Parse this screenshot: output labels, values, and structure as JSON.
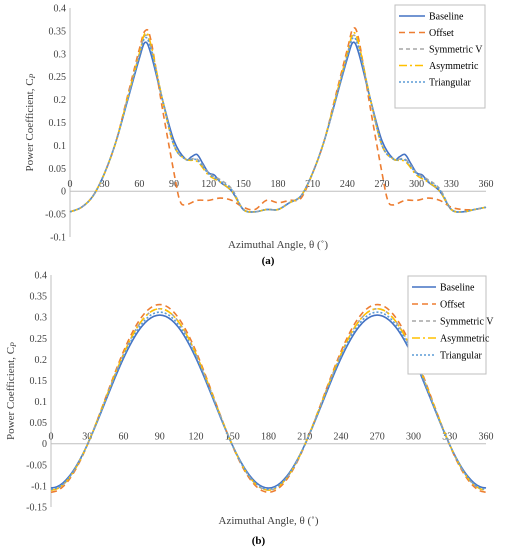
{
  "chart_data": [
    {
      "panel_label": "(a)",
      "type": "line",
      "xlabel": "Azimuthal Angle, θ (˚)",
      "ylabel": "Power Coefficient, C",
      "ylabel_sub": "P",
      "xlim": [
        0,
        360
      ],
      "ylim": [
        -0.1,
        0.4
      ],
      "xticks": [
        0,
        30,
        60,
        90,
        120,
        150,
        180,
        210,
        240,
        270,
        300,
        330,
        360
      ],
      "yticks": [
        -0.1,
        -0.05,
        0,
        0.05,
        0.1,
        0.15,
        0.2,
        0.25,
        0.3,
        0.35,
        0.4
      ],
      "xtick_labels": [
        "0",
        "30",
        "60",
        "90",
        "120",
        "150",
        "180",
        "210",
        "240",
        "270",
        "300",
        "330",
        "360"
      ],
      "ytick_labels": [
        "-0.1",
        "-0.05",
        "0",
        "0.05",
        "0.1",
        "0.15",
        "0.2",
        "0.25",
        "0.3",
        "0.35",
        "0.4"
      ],
      "grid": false,
      "legend_position": "top-right",
      "series": [
        {
          "name": "Baseline",
          "color": "#4472C4",
          "dash": "solid",
          "x": [
            0,
            10,
            20,
            30,
            40,
            50,
            60,
            65,
            70,
            80,
            90,
            100,
            105,
            110,
            115,
            120,
            125,
            130,
            140,
            150,
            160,
            170,
            180,
            190,
            200,
            210,
            220,
            230,
            240,
            245,
            250,
            260,
            270,
            280,
            285,
            290,
            295,
            300,
            305,
            310,
            320,
            330,
            340,
            350,
            360
          ],
          "y": [
            -0.045,
            -0.035,
            -0.01,
            0.04,
            0.11,
            0.2,
            0.29,
            0.325,
            0.3,
            0.2,
            0.11,
            0.07,
            0.075,
            0.08,
            0.06,
            0.04,
            0.035,
            0.02,
            0.0,
            -0.04,
            -0.045,
            -0.04,
            -0.04,
            -0.025,
            -0.01,
            0.04,
            0.11,
            0.2,
            0.29,
            0.325,
            0.3,
            0.2,
            0.11,
            0.07,
            0.075,
            0.08,
            0.06,
            0.04,
            0.035,
            0.02,
            0.0,
            -0.04,
            -0.045,
            -0.04,
            -0.035
          ]
        },
        {
          "name": "Offset",
          "color": "#ED7D31",
          "dash": "6 4",
          "x": [
            0,
            10,
            20,
            30,
            40,
            50,
            60,
            65,
            70,
            80,
            90,
            95,
            100,
            110,
            120,
            130,
            140,
            150,
            160,
            170,
            180,
            190,
            200,
            210,
            220,
            230,
            240,
            245,
            250,
            260,
            270,
            275,
            280,
            290,
            300,
            310,
            320,
            330,
            340,
            350,
            360
          ],
          "y": [
            -0.045,
            -0.035,
            -0.01,
            0.04,
            0.11,
            0.21,
            0.31,
            0.35,
            0.33,
            0.18,
            0.04,
            -0.02,
            -0.03,
            -0.02,
            -0.02,
            -0.015,
            -0.02,
            -0.035,
            -0.04,
            -0.02,
            -0.025,
            -0.02,
            -0.015,
            0.04,
            0.11,
            0.21,
            0.31,
            0.355,
            0.33,
            0.18,
            0.04,
            -0.02,
            -0.03,
            -0.02,
            -0.02,
            -0.015,
            -0.02,
            -0.035,
            -0.04,
            -0.04,
            -0.035
          ]
        },
        {
          "name": "Symmetric V",
          "color": "#A5A5A5",
          "dash": "4 3",
          "x": [
            0,
            10,
            20,
            30,
            40,
            50,
            60,
            65,
            70,
            80,
            90,
            100,
            110,
            120,
            130,
            140,
            150,
            160,
            170,
            180,
            190,
            200,
            210,
            220,
            230,
            240,
            245,
            250,
            260,
            270,
            280,
            290,
            300,
            310,
            320,
            330,
            340,
            350,
            360
          ],
          "y": [
            -0.045,
            -0.035,
            -0.01,
            0.04,
            0.11,
            0.205,
            0.3,
            0.34,
            0.315,
            0.2,
            0.1,
            0.07,
            0.07,
            0.04,
            0.025,
            0.005,
            -0.04,
            -0.045,
            -0.04,
            -0.04,
            -0.025,
            -0.01,
            0.04,
            0.11,
            0.205,
            0.3,
            0.34,
            0.315,
            0.2,
            0.1,
            0.07,
            0.07,
            0.04,
            0.025,
            0.005,
            -0.04,
            -0.045,
            -0.04,
            -0.035
          ]
        },
        {
          "name": "Asymmetric",
          "color": "#FFC000",
          "dash": "8 3 2 3",
          "x": [
            0,
            10,
            20,
            30,
            40,
            50,
            60,
            65,
            70,
            80,
            90,
            100,
            110,
            120,
            130,
            140,
            150,
            160,
            170,
            180,
            190,
            200,
            210,
            220,
            230,
            240,
            245,
            250,
            260,
            270,
            280,
            290,
            300,
            310,
            320,
            330,
            340,
            350,
            360
          ],
          "y": [
            -0.045,
            -0.035,
            -0.01,
            0.04,
            0.11,
            0.205,
            0.3,
            0.345,
            0.32,
            0.2,
            0.1,
            0.07,
            0.065,
            0.035,
            0.02,
            0.0,
            -0.04,
            -0.045,
            -0.04,
            -0.04,
            -0.025,
            -0.01,
            0.04,
            0.11,
            0.205,
            0.3,
            0.345,
            0.32,
            0.2,
            0.1,
            0.07,
            0.065,
            0.035,
            0.02,
            0.0,
            -0.04,
            -0.045,
            -0.04,
            -0.035
          ]
        },
        {
          "name": "Triangular",
          "color": "#5B9BD5",
          "dash": "2 2",
          "x": [
            0,
            10,
            20,
            30,
            40,
            50,
            60,
            65,
            70,
            80,
            90,
            100,
            110,
            120,
            130,
            140,
            150,
            160,
            170,
            180,
            190,
            200,
            210,
            220,
            230,
            240,
            245,
            250,
            260,
            270,
            280,
            290,
            300,
            310,
            320,
            330,
            340,
            350,
            360
          ],
          "y": [
            -0.045,
            -0.035,
            -0.01,
            0.04,
            0.11,
            0.2,
            0.295,
            0.335,
            0.31,
            0.2,
            0.1,
            0.07,
            0.068,
            0.038,
            0.022,
            0.003,
            -0.04,
            -0.045,
            -0.04,
            -0.04,
            -0.025,
            -0.01,
            0.04,
            0.11,
            0.2,
            0.295,
            0.335,
            0.31,
            0.2,
            0.1,
            0.07,
            0.068,
            0.038,
            0.022,
            0.003,
            -0.04,
            -0.045,
            -0.04,
            -0.035
          ]
        }
      ]
    },
    {
      "panel_label": "(b)",
      "type": "line",
      "xlabel": "Azimuthal Angle, θ (˚)",
      "ylabel": "Power Coefficient, C",
      "ylabel_sub": "P",
      "xlim": [
        0,
        360
      ],
      "ylim": [
        -0.15,
        0.4
      ],
      "xticks": [
        0,
        30,
        60,
        90,
        120,
        150,
        180,
        210,
        240,
        270,
        300,
        330,
        360
      ],
      "yticks": [
        -0.15,
        -0.1,
        -0.05,
        0,
        0.05,
        0.1,
        0.15,
        0.2,
        0.25,
        0.3,
        0.35,
        0.4
      ],
      "xtick_labels": [
        "0",
        "30",
        "60",
        "90",
        "120",
        "150",
        "180",
        "210",
        "240",
        "270",
        "300",
        "330",
        "360"
      ],
      "ytick_labels": [
        "-0.15",
        "-0.1",
        "-0.05",
        "0",
        "0.05",
        "0.1",
        "0.15",
        "0.2",
        "0.25",
        "0.3",
        "0.35",
        "0.4"
      ],
      "grid": false,
      "legend_position": "top-right",
      "series": [
        {
          "name": "Baseline",
          "color": "#4472C4",
          "dash": "solid",
          "peak": 0.305,
          "trough": -0.105
        },
        {
          "name": "Offset",
          "color": "#ED7D31",
          "dash": "6 4",
          "peak": 0.33,
          "trough": -0.115
        },
        {
          "name": "Symmetric V",
          "color": "#A5A5A5",
          "dash": "4 3",
          "peak": 0.32,
          "trough": -0.11
        },
        {
          "name": "Asymmetric",
          "color": "#FFC000",
          "dash": "8 3 2 3",
          "peak": 0.32,
          "trough": -0.11
        },
        {
          "name": "Triangular",
          "color": "#5B9BD5",
          "dash": "2 2",
          "peak": 0.312,
          "trough": -0.108
        }
      ]
    }
  ]
}
